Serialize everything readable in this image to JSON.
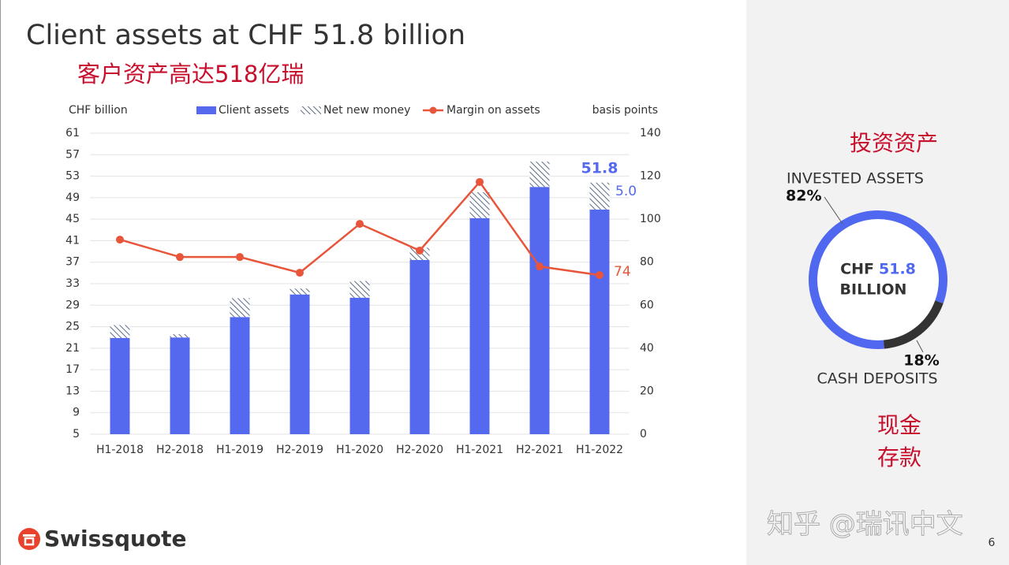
{
  "title": "Client assets at CHF 51.8 billion",
  "subtitle": "客户资产高达518亿瑞",
  "logo": "Swissquote",
  "page_number": "6",
  "watermark": "知乎 @瑞讯中文",
  "chart_data": [
    {
      "type": "bar",
      "ylabel": "CHF billion",
      "y2label": "basis points",
      "categories": [
        "H1-2018",
        "H2-2018",
        "H1-2019",
        "H2-2019",
        "H1-2020",
        "H2-2020",
        "H1-2021",
        "H2-2021",
        "H1-2022"
      ],
      "series": [
        {
          "name": "Client assets",
          "color": "#5569ee",
          "values": [
            22.9,
            23.0,
            26.8,
            31.0,
            30.4,
            37.4,
            45.2,
            51.0,
            46.8
          ]
        },
        {
          "name": "Net new money",
          "color": "#5a6a8a",
          "values": [
            2.4,
            0.6,
            3.5,
            1.1,
            3.1,
            2.3,
            4.8,
            4.7,
            5.0
          ],
          "value_labels": [
            null,
            null,
            null,
            null,
            null,
            null,
            null,
            null,
            "5.0"
          ]
        },
        {
          "name": "Margin on assets",
          "color": "#e8553a",
          "axis": "y2",
          "type": "line",
          "values": [
            90.5,
            82.4,
            82.4,
            75.1,
            97.8,
            85.4,
            117.3,
            78,
            74
          ],
          "value_labels": [
            null,
            null,
            null,
            null,
            null,
            null,
            null,
            null,
            "74"
          ]
        }
      ],
      "annotations": [
        {
          "text": "51.8"
        }
      ],
      "ylim": [
        5,
        61
      ],
      "yticks": [
        5,
        9,
        13,
        17,
        21,
        25,
        29,
        33,
        37,
        41,
        45,
        49,
        53,
        57,
        61
      ],
      "y2lim": [
        0,
        140
      ],
      "y2ticks": [
        0,
        20,
        40,
        60,
        80,
        100,
        120,
        140
      ],
      "grid": true,
      "legend": "top"
    },
    {
      "type": "donut",
      "title": "投资资产",
      "categories": [
        "INVESTED ASSETS",
        "CASH DEPOSITS"
      ],
      "values": [
        82,
        18
      ],
      "value_labels": [
        "82%",
        "18%"
      ],
      "colors": [
        "#5068f0",
        "#333333"
      ],
      "center_label": {
        "prefix": "CHF",
        "value": "51.8",
        "suffix": "BILLION"
      },
      "annotations": [
        "现金",
        "存款"
      ]
    }
  ]
}
